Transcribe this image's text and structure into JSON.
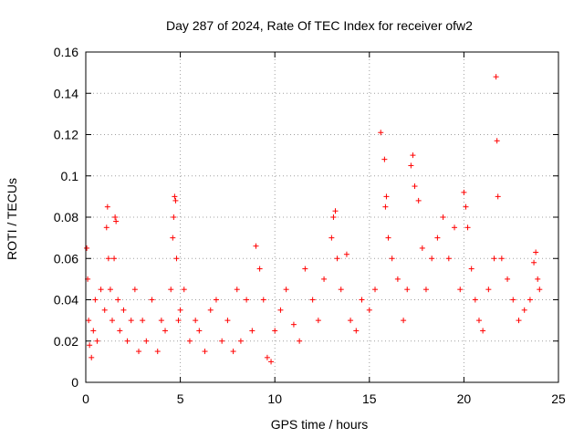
{
  "chart_data": {
    "type": "scatter",
    "title": "Day 287 of 2024, Rate Of TEC Index for receiver ofw2",
    "xlabel": "GPS time / hours",
    "ylabel": "ROTI / TECUs",
    "xlim": [
      0,
      25
    ],
    "ylim": [
      0,
      0.16
    ],
    "xticks": [
      0,
      5,
      10,
      15,
      20,
      25
    ],
    "xtick_labels": [
      "0",
      "5",
      "10",
      "15",
      "20",
      "25"
    ],
    "yticks": [
      0,
      0.02,
      0.04,
      0.06,
      0.08,
      0.1,
      0.12,
      0.14,
      0.16
    ],
    "ytick_labels": [
      "0",
      "0.02",
      "0.04",
      "0.06",
      "0.08",
      "0.1",
      "0.12",
      "0.14",
      "0.16"
    ],
    "grid": true,
    "marker": "plus",
    "color": "#ff0000",
    "series": [
      {
        "name": "ROTI",
        "x": [
          0.05,
          0.1,
          0.15,
          0.2,
          0.3,
          0.4,
          0.5,
          0.6,
          0.8,
          1.0,
          1.1,
          1.15,
          1.2,
          1.3,
          1.4,
          1.5,
          1.55,
          1.6,
          1.7,
          1.8,
          2.0,
          2.2,
          2.4,
          2.6,
          2.8,
          3.0,
          3.2,
          3.5,
          3.8,
          4.0,
          4.2,
          4.5,
          4.6,
          4.65,
          4.7,
          4.75,
          4.8,
          4.9,
          5.0,
          5.2,
          5.5,
          5.8,
          6.0,
          6.3,
          6.6,
          6.9,
          7.2,
          7.5,
          7.8,
          8.0,
          8.2,
          8.5,
          8.8,
          9.0,
          9.2,
          9.4,
          9.6,
          9.8,
          10.0,
          10.3,
          10.6,
          11.0,
          11.3,
          11.6,
          12.0,
          12.3,
          12.6,
          13.0,
          13.1,
          13.2,
          13.3,
          13.5,
          13.8,
          14.0,
          14.3,
          14.6,
          15.0,
          15.3,
          15.6,
          15.8,
          15.85,
          15.9,
          16.0,
          16.2,
          16.5,
          16.8,
          17.0,
          17.2,
          17.3,
          17.4,
          17.6,
          17.8,
          18.0,
          18.3,
          18.6,
          18.9,
          19.2,
          19.5,
          19.8,
          20.0,
          20.1,
          20.2,
          20.4,
          20.6,
          20.8,
          21.0,
          21.3,
          21.6,
          21.7,
          21.75,
          21.8,
          22.0,
          22.3,
          22.6,
          22.9,
          23.2,
          23.5,
          23.7,
          23.8,
          23.9,
          24.0
        ],
        "y": [
          0.065,
          0.05,
          0.03,
          0.018,
          0.012,
          0.025,
          0.04,
          0.02,
          0.045,
          0.035,
          0.075,
          0.085,
          0.06,
          0.045,
          0.03,
          0.06,
          0.08,
          0.078,
          0.04,
          0.025,
          0.035,
          0.02,
          0.03,
          0.045,
          0.015,
          0.03,
          0.02,
          0.04,
          0.015,
          0.03,
          0.025,
          0.045,
          0.07,
          0.08,
          0.09,
          0.088,
          0.06,
          0.03,
          0.035,
          0.045,
          0.02,
          0.03,
          0.025,
          0.015,
          0.035,
          0.04,
          0.02,
          0.03,
          0.015,
          0.045,
          0.02,
          0.04,
          0.025,
          0.066,
          0.055,
          0.04,
          0.012,
          0.01,
          0.025,
          0.035,
          0.045,
          0.028,
          0.02,
          0.055,
          0.04,
          0.03,
          0.05,
          0.07,
          0.08,
          0.083,
          0.06,
          0.045,
          0.062,
          0.03,
          0.025,
          0.04,
          0.035,
          0.045,
          0.121,
          0.108,
          0.085,
          0.09,
          0.07,
          0.06,
          0.05,
          0.03,
          0.045,
          0.105,
          0.11,
          0.095,
          0.088,
          0.065,
          0.045,
          0.06,
          0.07,
          0.08,
          0.06,
          0.075,
          0.045,
          0.092,
          0.085,
          0.075,
          0.055,
          0.04,
          0.03,
          0.025,
          0.045,
          0.06,
          0.148,
          0.117,
          0.09,
          0.06,
          0.05,
          0.04,
          0.03,
          0.035,
          0.04,
          0.058,
          0.063,
          0.05,
          0.045
        ]
      }
    ]
  }
}
